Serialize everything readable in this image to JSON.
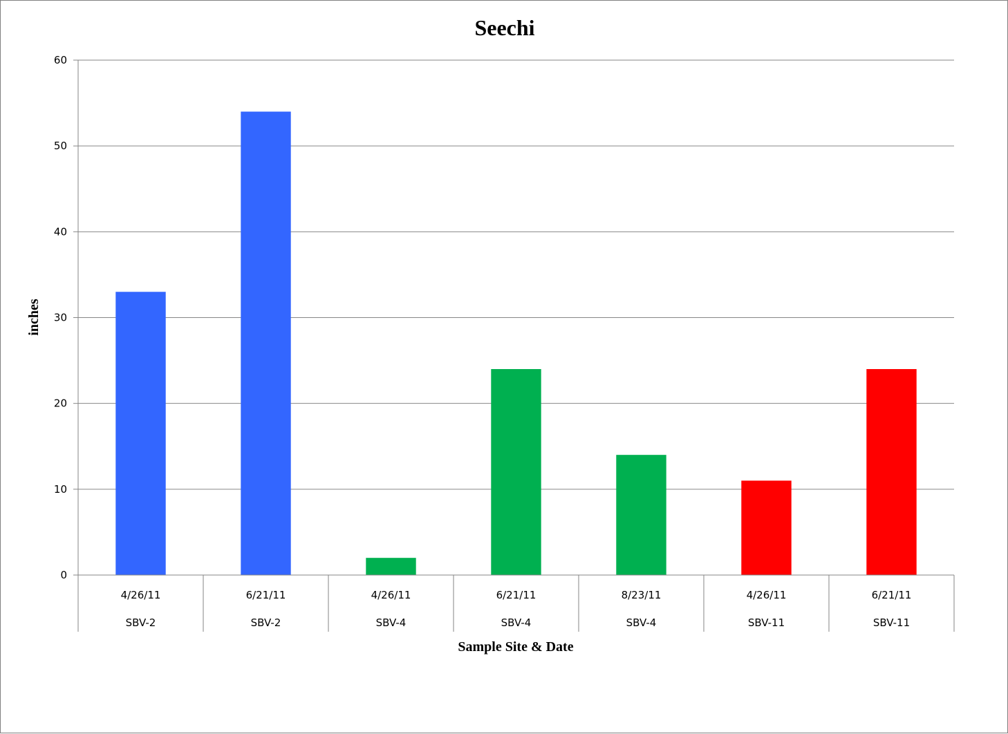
{
  "chart_data": {
    "type": "bar",
    "title": "Seechi",
    "xlabel": "Sample Site & Date",
    "ylabel": "inches",
    "ylim": [
      0,
      60
    ],
    "yticks": [
      0,
      10,
      20,
      30,
      40,
      50,
      60
    ],
    "grid": true,
    "legend": "none",
    "categories": [
      {
        "date": "4/26/11",
        "site": "SBV-2"
      },
      {
        "date": "6/21/11",
        "site": "SBV-2"
      },
      {
        "date": "4/26/11",
        "site": "SBV-4"
      },
      {
        "date": "6/21/11",
        "site": "SBV-4"
      },
      {
        "date": "8/23/11",
        "site": "SBV-4"
      },
      {
        "date": "4/26/11",
        "site": "SBV-11"
      },
      {
        "date": "6/21/11",
        "site": "SBV-11"
      }
    ],
    "values": [
      33,
      54,
      2,
      24,
      14,
      11,
      24
    ],
    "colors": [
      "#3366FF",
      "#3366FF",
      "#00B050",
      "#00B050",
      "#00B050",
      "#FF0000",
      "#FF0000"
    ]
  }
}
